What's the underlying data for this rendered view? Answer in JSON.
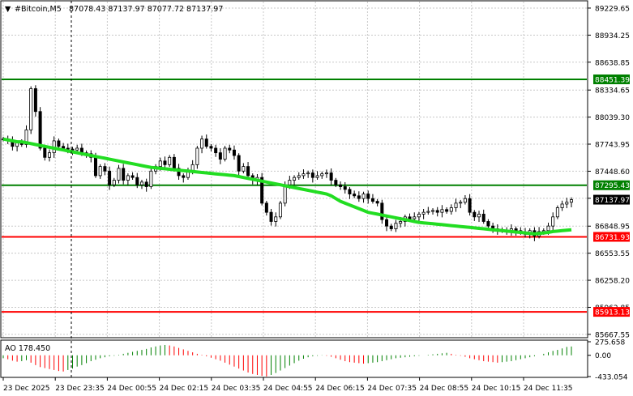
{
  "header": {
    "symbol": "#Bitcoin,M5",
    "ohlc": "87078.43 87137.97 87077.72 87137.97",
    "arrow_glyph": "▼"
  },
  "chart_data": [
    {
      "type": "candlestick",
      "title": "#Bitcoin,M5",
      "y_ticks": [
        "89229.65",
        "88934.25",
        "88638.85",
        "88334.65",
        "88039.30",
        "87743.95",
        "87448.60",
        "87153.20",
        "86848.95",
        "86553.55",
        "86258.20",
        "85962.85",
        "85667.55"
      ],
      "ylim": [
        85640,
        89300
      ],
      "x_ticks": [
        "23 Dec 2025",
        "23 Dec 23:35",
        "24 Dec 00:55",
        "24 Dec 02:15",
        "24 Dec 03:35",
        "24 Dec 04:55",
        "24 Dec 06:15",
        "24 Dec 07:35",
        "24 Dec 08:55",
        "24 Dec 10:15",
        "24 Dec 11:35"
      ],
      "close": [
        87800,
        87780,
        87720,
        87760,
        87740,
        87900,
        88350,
        88100,
        87700,
        87600,
        87650,
        87780,
        87720,
        87700,
        87690,
        87680,
        87700,
        87650,
        87640,
        87600,
        87400,
        87500,
        87450,
        87300,
        87350,
        87480,
        87350,
        87400,
        87380,
        87300,
        87330,
        87280,
        87450,
        87500,
        87560,
        87520,
        87600,
        87480,
        87400,
        87380,
        87450,
        87520,
        87700,
        87800,
        87720,
        87700,
        87650,
        87580,
        87700,
        87680,
        87620,
        87450,
        87500,
        87400,
        87350,
        87380,
        87100,
        87000,
        86900,
        86950,
        87100,
        87300,
        87350,
        87380,
        87400,
        87420,
        87430,
        87380,
        87400,
        87420,
        87430,
        87350,
        87300,
        87280,
        87250,
        87200,
        87180,
        87150,
        87200,
        87150,
        87120,
        87100,
        86920,
        86850,
        86820,
        86880,
        86900,
        86950,
        86930,
        86950,
        86980,
        87000,
        87010,
        87020,
        87000,
        87030,
        87010,
        87050,
        87100,
        87110,
        87150,
        87000,
        86950,
        86980,
        86900,
        86850,
        86820,
        86810,
        86800,
        86790,
        86820,
        86800,
        86780,
        86760,
        86800,
        86740,
        86790,
        86800,
        86850,
        86950,
        87050,
        87090,
        87110,
        87137.97
      ],
      "ma_line": {
        "color": "#22dd22",
        "values": [
          87800,
          87790,
          87780,
          87770,
          87770,
          87760,
          87750,
          87740,
          87730,
          87720,
          87710,
          87700,
          87690,
          87680,
          87670,
          87660,
          87650,
          87640,
          87630,
          87620,
          87610,
          87600,
          87590,
          87580,
          87570,
          87560,
          87550,
          87540,
          87530,
          87520,
          87510,
          87500,
          87490,
          87485,
          87480,
          87475,
          87470,
          87465,
          87460,
          87455,
          87450,
          87445,
          87440,
          87435,
          87430,
          87425,
          87420,
          87415,
          87410,
          87405,
          87400,
          87390,
          87380,
          87370,
          87360,
          87350,
          87340,
          87330,
          87320,
          87310,
          87300,
          87290,
          87280,
          87270,
          87260,
          87250,
          87240,
          87230,
          87220,
          87210,
          87200,
          87180,
          87150,
          87120,
          87100,
          87080,
          87060,
          87040,
          87020,
          87000,
          86990,
          86980,
          86970,
          86960,
          86950,
          86940,
          86930,
          86920,
          86910,
          86900,
          86890,
          86885,
          86880,
          86875,
          86870,
          86865,
          86860,
          86855,
          86850,
          86845,
          86840,
          86835,
          86830,
          86825,
          86820,
          86815,
          86810,
          86805,
          86800,
          86795,
          86790,
          86785,
          86780,
          86775,
          86770,
          86765,
          86770,
          86775,
          86780,
          86790,
          86795,
          86800,
          86805,
          86810
        ]
      },
      "levels": [
        {
          "label": "88451.39",
          "value": 88451.39,
          "color": "#008000"
        },
        {
          "label": "87295.43",
          "value": 87295.43,
          "color": "#008000"
        },
        {
          "label": "86731.93",
          "value": 86731.93,
          "color": "#ff0000"
        },
        {
          "label": "85913.13",
          "value": 85913.13,
          "color": "#ff0000"
        }
      ],
      "current_price": {
        "label": "87137.97",
        "value": 87137.97
      }
    },
    {
      "type": "bar",
      "title": "AO 178.450",
      "y_ticks": [
        "275.658",
        "0.00",
        "-433.054"
      ],
      "ylim": [
        -433.054,
        275.658
      ],
      "up_color": "#008000",
      "down_color": "#ff0000",
      "values": [
        -60,
        -80,
        -110,
        -130,
        -120,
        -100,
        -150,
        -200,
        -240,
        -260,
        -280,
        -300,
        -320,
        -330,
        -300,
        -270,
        -230,
        -200,
        -160,
        -120,
        -90,
        -60,
        -40,
        -20,
        -10,
        10,
        30,
        50,
        70,
        90,
        110,
        130,
        160,
        180,
        200,
        210,
        200,
        180,
        150,
        120,
        90,
        60,
        30,
        10,
        -20,
        -50,
        -80,
        -110,
        -150,
        -190,
        -230,
        -270,
        -310,
        -350,
        -380,
        -400,
        -420,
        -430,
        -400,
        -360,
        -310,
        -260,
        -210,
        -160,
        -110,
        -70,
        -40,
        -20,
        -10,
        -5,
        -10,
        -30,
        -60,
        -90,
        -120,
        -140,
        -150,
        -160,
        -170,
        -160,
        -150,
        -140,
        -120,
        -100,
        -80,
        -60,
        -50,
        -40,
        -30,
        -20,
        -10,
        0,
        10,
        20,
        30,
        40,
        50,
        30,
        10,
        -10,
        -30,
        -60,
        -80,
        -100,
        -120,
        -130,
        -140,
        -150,
        -140,
        -130,
        -120,
        -100,
        -80,
        -60,
        -40,
        -20,
        0,
        30,
        60,
        90,
        110,
        140,
        170,
        178.45
      ]
    }
  ]
}
